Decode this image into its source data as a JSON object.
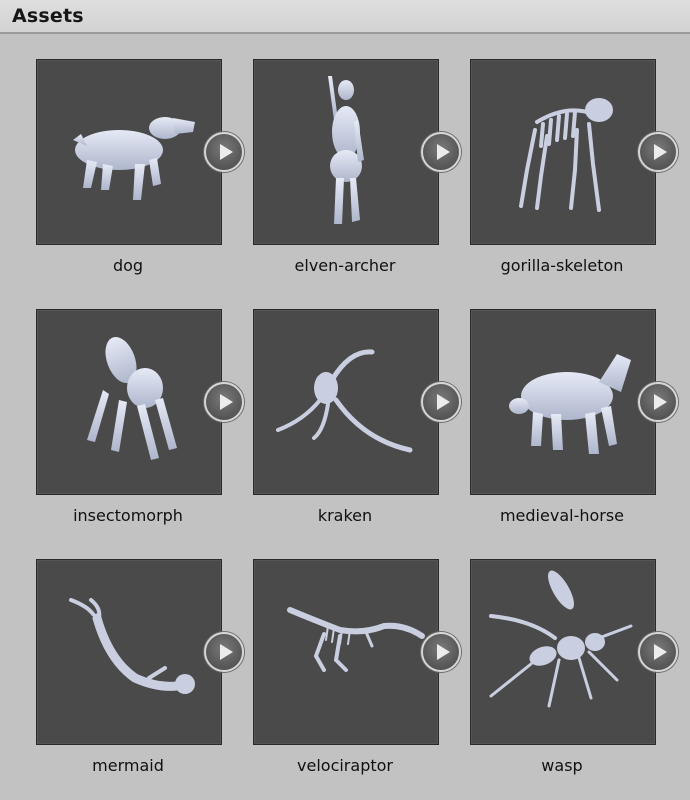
{
  "panel": {
    "title": "Assets"
  },
  "assets": [
    {
      "name": "dog",
      "icon": "dog-model-icon"
    },
    {
      "name": "elven-archer",
      "icon": "elven-archer-model-icon"
    },
    {
      "name": "gorilla-skeleton",
      "icon": "gorilla-skeleton-model-icon"
    },
    {
      "name": "insectomorph",
      "icon": "insectomorph-model-icon"
    },
    {
      "name": "kraken",
      "icon": "kraken-model-icon"
    },
    {
      "name": "medieval-horse",
      "icon": "medieval-horse-model-icon"
    },
    {
      "name": "mermaid",
      "icon": "mermaid-model-icon"
    },
    {
      "name": "velociraptor",
      "icon": "velociraptor-model-icon"
    },
    {
      "name": "wasp",
      "icon": "wasp-model-icon"
    }
  ],
  "colors": {
    "panel_bg": "#c2c2c2",
    "thumb_bg": "#4a4a4a",
    "model": "#c9cfe0"
  }
}
